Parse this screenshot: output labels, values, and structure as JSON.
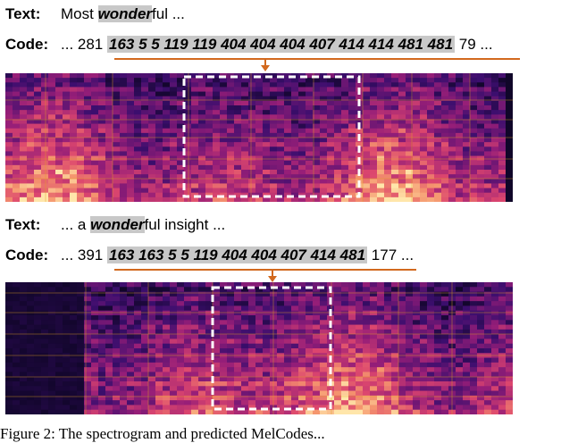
{
  "examples": [
    {
      "text_label": "Text:",
      "text_pre": "Most ",
      "text_highlight_bold": "wonder",
      "text_post": "ful ...",
      "code_label": "Code:",
      "code_pre": "... 281 ",
      "code_highlight": "163 5 5 119 119 404 404 404 407 414 414 481 481",
      "code_post": " 79 ...",
      "colors": {
        "highlight": "#c8c8c8",
        "underline": "#d2691e",
        "box": "#ffffff"
      }
    },
    {
      "text_label": "Text:",
      "text_pre": "... a ",
      "text_highlight_bold": "wonder",
      "text_post": "ful insight ...",
      "code_label": "Code:",
      "code_pre": "... 391 ",
      "code_highlight": "163 163 5 5 119 404 404 407 414 481",
      "code_post": " 177 ...",
      "colors": {
        "highlight": "#c8c8c8",
        "underline": "#d2691e",
        "box": "#ffffff"
      }
    }
  ],
  "caption": "Figure 2: The spectrogram and predicted MelCodes..."
}
